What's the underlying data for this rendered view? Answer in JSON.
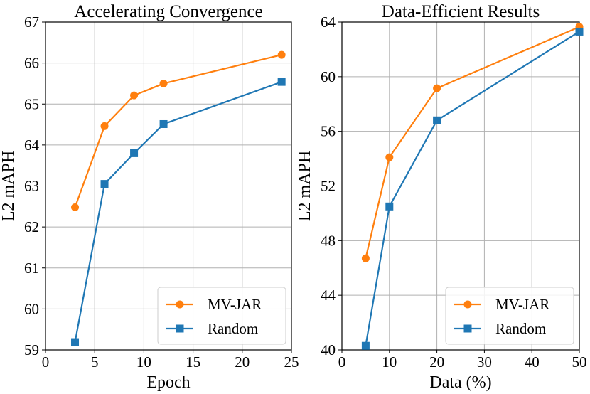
{
  "colors": {
    "mvjar": "#ff7f0e",
    "random": "#1f77b4"
  },
  "chart_data": [
    {
      "type": "line",
      "title": "Accelerating Convergence",
      "xlabel": "Epoch",
      "ylabel": "L2 mAPH",
      "xlim": [
        0,
        25
      ],
      "ylim": [
        59,
        67
      ],
      "xticks": [
        0,
        5,
        10,
        15,
        20,
        25
      ],
      "yticks": [
        59,
        60,
        61,
        62,
        63,
        64,
        65,
        66,
        67
      ],
      "grid": true,
      "legend_position": "lower-right",
      "series": [
        {
          "name": "MV-JAR",
          "marker": "circle",
          "x": [
            3,
            6,
            9,
            12,
            24
          ],
          "y": [
            62.48,
            64.46,
            65.21,
            65.5,
            66.2
          ]
        },
        {
          "name": "Random",
          "marker": "square",
          "x": [
            3,
            6,
            9,
            12,
            24
          ],
          "y": [
            59.19,
            63.05,
            63.8,
            64.51,
            65.54
          ]
        }
      ]
    },
    {
      "type": "line",
      "title": "Data-Efficient Results",
      "xlabel": "Data (%)",
      "ylabel": "L2 mAPH",
      "xlim": [
        0,
        50
      ],
      "ylim": [
        40,
        64
      ],
      "xticks": [
        0,
        10,
        20,
        30,
        40,
        50
      ],
      "yticks": [
        40,
        44,
        48,
        52,
        56,
        60,
        64
      ],
      "grid": true,
      "legend_position": "lower-right",
      "series": [
        {
          "name": "MV-JAR",
          "marker": "circle",
          "x": [
            5,
            10,
            20,
            50
          ],
          "y": [
            46.7,
            54.1,
            59.15,
            63.65
          ]
        },
        {
          "name": "Random",
          "marker": "square",
          "x": [
            5,
            10,
            20,
            50
          ],
          "y": [
            40.3,
            50.5,
            56.8,
            63.3
          ]
        }
      ]
    }
  ]
}
